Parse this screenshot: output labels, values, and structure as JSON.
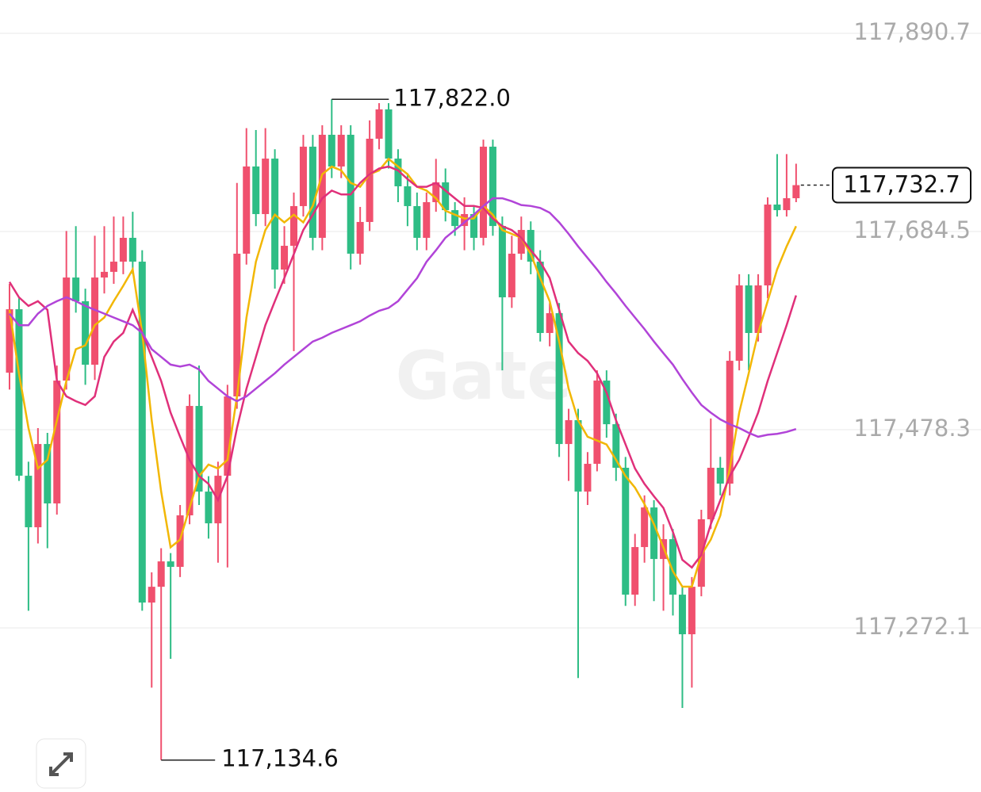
{
  "chart_data": {
    "type": "candlestick",
    "watermark": "Gate",
    "ylim": [
      117101.4,
      117925.3
    ],
    "yticks": [
      {
        "value": 117272.1,
        "label": "117,272.1"
      },
      {
        "value": 117478.3,
        "label": "117,478.3"
      },
      {
        "value": 117684.5,
        "label": "117,684.5"
      },
      {
        "value": 117890.7,
        "label": "117,890.7"
      }
    ],
    "grid": true,
    "up_color": "#f0506e",
    "down_color": "#2ebd85",
    "high_label": "117,822.0",
    "low_label": "117,134.6",
    "last_label": "117,732.7",
    "open": [
      117537.6,
      117603.6,
      117430.4,
      117376.8,
      117463.4,
      117401.6,
      117529.4,
      117636.6,
      117611.9,
      117545.9,
      117636.6,
      117642.5,
      117653.1,
      117677.9,
      117653.1,
      117298.5,
      117314.9,
      117341.3,
      117335.6,
      117389.2,
      117503.0,
      117413.9,
      117380.9,
      117430.4,
      117512.9,
      117661.4,
      117752.1,
      117702.6,
      117760.3,
      117644.9,
      117669.6,
      117710.9,
      117772.7,
      117677.9,
      117785.1,
      117752.1,
      117785.1,
      117661.4,
      117694.4,
      117781.0,
      117811.5,
      117760.3,
      117731.5,
      117710.9,
      117677.9,
      117715.0,
      117735.6,
      117706.7,
      117690.2,
      117702.6,
      117677.9,
      117772.7,
      117690.2,
      117616.0,
      117661.4,
      117686.1,
      117653.1,
      117578.9,
      117599.5,
      117463.4,
      117488.2,
      117413.9,
      117442.8,
      117529.4,
      117484.0,
      117438.7,
      117306.7,
      117356.2,
      117397.4,
      117343.8,
      117364.4,
      117306.7,
      117265.5,
      117314.9,
      117385.1,
      117438.7,
      117422.2,
      117550.0,
      117628.4,
      117578.9,
      117628.4,
      117712.5,
      117706.7,
      117719.1
    ],
    "high": [
      117630,
      117615,
      117445,
      117480,
      117475,
      117545,
      117685,
      117690,
      117625,
      117680,
      117690,
      117700,
      117700,
      117705,
      117665,
      117330,
      117355,
      117350,
      117400,
      117515,
      117545,
      117430,
      117445,
      117525,
      117735,
      117792,
      117790,
      117792,
      117770,
      117690,
      117725,
      117785,
      117785,
      117795,
      117822.0,
      117795,
      117795,
      117710,
      117800,
      117818,
      117818,
      117770,
      117745,
      117725,
      117725,
      117760,
      117750,
      117715,
      117720,
      117710,
      117780,
      117780,
      117700,
      117680,
      117700,
      117695,
      117665,
      117610,
      117610,
      117500,
      117500,
      117455,
      117540,
      117540,
      117495,
      117450,
      117370,
      117410,
      117405,
      117380,
      117375,
      117315,
      117325,
      117395,
      117490,
      117450,
      117560,
      117640,
      117640,
      117640,
      117720,
      117765,
      117765,
      117755
    ],
    "low": [
      117520,
      117425,
      117290,
      117360,
      117355,
      117390,
      117520,
      117600,
      117525,
      117530,
      117620,
      117630,
      117640,
      117640,
      117290,
      117210,
      117134.6,
      117240,
      117325,
      117380,
      117400,
      117365,
      117340,
      117335,
      117500,
      117650,
      117690,
      117690,
      117625,
      117630,
      117560,
      117700,
      117665,
      117665,
      117740,
      117740,
      117645,
      117650,
      117685,
      117770,
      117750,
      117715,
      117690,
      117665,
      117665,
      117705,
      117695,
      117680,
      117665,
      117665,
      117670,
      117680,
      117540,
      117605,
      117655,
      117640,
      117570,
      117565,
      117450,
      117425,
      117220,
      117400,
      117435,
      117470,
      117425,
      117295,
      117295,
      117340,
      117300,
      117290,
      117285,
      117188.8,
      117210,
      117305,
      117375,
      117410,
      117410,
      117540,
      117540,
      117570,
      117615,
      117700,
      117700,
      117715
    ],
    "close": [
      117603.6,
      117430.4,
      117376.8,
      117463.4,
      117401.6,
      117529.4,
      117636.6,
      117611.9,
      117545.9,
      117636.6,
      117642.5,
      117653.1,
      117677.9,
      117653.1,
      117298.5,
      117314.9,
      117341.3,
      117335.6,
      117389.2,
      117503.0,
      117413.9,
      117380.9,
      117430.4,
      117512.9,
      117661.4,
      117752.1,
      117702.6,
      117760.3,
      117644.9,
      117669.6,
      117710.9,
      117772.7,
      117677.9,
      117785.1,
      117752.1,
      117785.1,
      117661.4,
      117694.4,
      117781.0,
      117811.5,
      117760.3,
      117731.5,
      117710.9,
      117677.9,
      117715.0,
      117735.6,
      117706.7,
      117690.2,
      117702.6,
      117677.9,
      117772.7,
      117690.2,
      117616.0,
      117661.4,
      117686.1,
      117653.1,
      117578.9,
      117599.5,
      117463.4,
      117488.2,
      117413.9,
      117442.8,
      117529.4,
      117484.0,
      117438.7,
      117306.7,
      117356.2,
      117397.4,
      117343.8,
      117364.4,
      117306.7,
      117265.5,
      117314.9,
      117385.1,
      117438.7,
      117422.2,
      117550.0,
      117628.4,
      117578.9,
      117628.4,
      117712.5,
      117706.7,
      117719.1,
      117732.7
    ],
    "lines": [
      {
        "color": "#f2b705",
        "values": [
          117603,
          117537,
          117480,
          117438,
          117447,
          117488,
          117529,
          117562,
          117566,
          117587,
          117595,
          117612,
          117628,
          117645,
          117579,
          117488,
          117414,
          117356,
          117364,
          117397,
          117430,
          117442,
          117438,
          117447,
          117513,
          117595,
          117653,
          117686,
          117702,
          117694,
          117702,
          117694,
          117711,
          117744,
          117752,
          117748,
          117735,
          117731,
          117744,
          117748,
          117760,
          117752,
          117744,
          117731,
          117727,
          117719,
          117706,
          117702,
          117698,
          117698,
          117711,
          117702,
          117686,
          117682,
          117678,
          117661,
          117636,
          117612,
          117570,
          117521,
          117488,
          117471,
          117467,
          117463,
          117447,
          117430,
          117418,
          117401,
          117380,
          117356,
          117331,
          117315,
          117315,
          117348,
          117364,
          117389,
          117438,
          117496,
          117537,
          117579,
          117612,
          117645,
          117669,
          117690
        ]
      },
      {
        "color": "#e0307a",
        "values": [
          117632,
          117616,
          117607,
          117612,
          117603,
          117529,
          117513,
          117508,
          117504,
          117513,
          117554,
          117570,
          117579,
          117603,
          117579,
          117554,
          117529,
          117496,
          117471,
          117447,
          117430,
          117422,
          117405,
          117430,
          117480,
          117521,
          117554,
          117587,
          117612,
          117636,
          117661,
          117686,
          117702,
          117719,
          117727,
          117723,
          117723,
          117735,
          117744,
          117750,
          117752,
          117748,
          117739,
          117731,
          117731,
          117735,
          117727,
          117719,
          117711,
          117711,
          117709,
          117698,
          117690,
          117686,
          117678,
          117665,
          117653,
          117636,
          117603,
          117570,
          117558,
          117550,
          117537,
          117517,
          117488,
          117463,
          117438,
          117422,
          117409,
          117397,
          117372,
          117343,
          117335,
          117348,
          117380,
          117405,
          117430,
          117447,
          117471,
          117496,
          117529,
          117558,
          117587,
          117618
        ]
      },
      {
        "color": "#b144d8",
        "values": [
          117599,
          117587,
          117587,
          117599,
          117607,
          117612,
          117616,
          117612,
          117607,
          117603,
          117599,
          117595,
          117591,
          117587,
          117579,
          117562,
          117554,
          117546,
          117544,
          117546,
          117541,
          117529,
          117521,
          117513,
          117508,
          117513,
          117521,
          117529,
          117537,
          117546,
          117554,
          117562,
          117570,
          117574,
          117579,
          117583,
          117587,
          117591,
          117597,
          117602,
          117605,
          117612,
          117624,
          117636,
          117653,
          117665,
          117678,
          117686,
          117694,
          117702,
          117711,
          117719,
          117719,
          117716,
          117712,
          117711,
          117709,
          117704,
          117694,
          117682,
          117669,
          117657,
          117645,
          117632,
          117620,
          117607,
          117595,
          117583,
          117570,
          117558,
          117546,
          117531,
          117517,
          117504,
          117496,
          117489,
          117484,
          117480,
          117475,
          117471,
          117473,
          117474,
          117476,
          117479
        ]
      }
    ]
  }
}
